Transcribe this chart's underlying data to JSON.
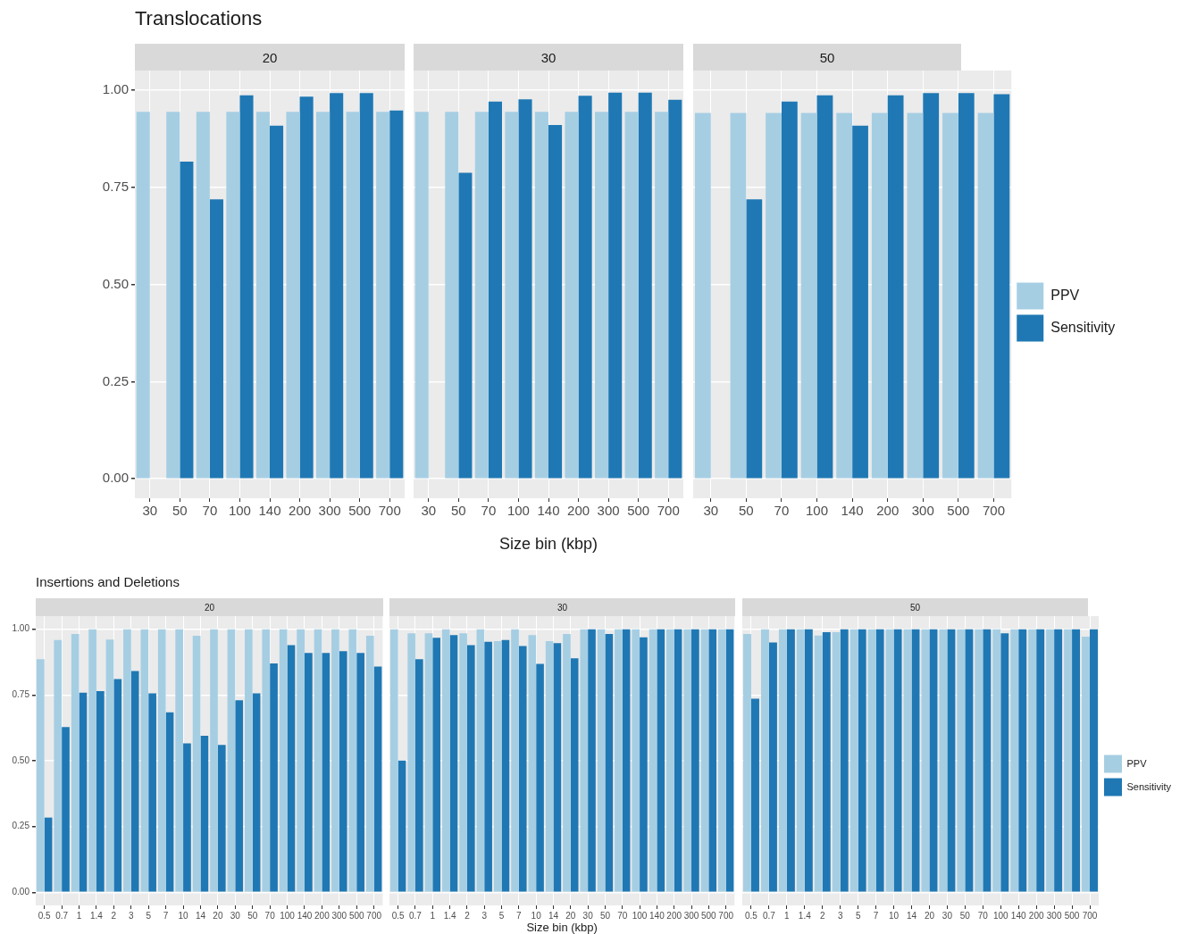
{
  "chart_data": [
    {
      "type": "bar",
      "title": "Translocations",
      "subtitle": "20",
      "categories": [
        "30",
        "50",
        "70",
        "100",
        "140",
        "200",
        "300",
        "500",
        "700"
      ],
      "series": [
        {
          "color": "#a6cee3",
          "values": [
            0.944,
            0.944,
            0.944,
            0.944,
            0.944,
            0.944,
            0.944,
            0.944,
            0.944
          ]
        },
        {
          "color": "#1f78b4",
          "values": [
            0,
            0.816,
            0.719,
            0.986,
            0.908,
            0.983,
            0.992,
            0.992,
            0.947
          ]
        }
      ],
      "ylim": [
        -0.05,
        1.05
      ],
      "yticks": [
        {
          "value": 0,
          "label": "0.00"
        },
        {
          "value": 0.25,
          "label": "0.25"
        },
        {
          "value": 0.5,
          "label": "0.50"
        },
        {
          "value": 0.75,
          "label": "0.75"
        },
        {
          "value": 1,
          "label": "1.00"
        }
      ],
      "grid": true
    },
    {
      "type": "bar",
      "subtitle": "30",
      "xlabel": "Size bin (kbp)",
      "categories": [
        "30",
        "50",
        "70",
        "100",
        "140",
        "200",
        "300",
        "500",
        "700"
      ],
      "series": [
        {
          "color": "#a6cee3",
          "values": [
            0.944,
            0.944,
            0.944,
            0.944,
            0.944,
            0.944,
            0.944,
            0.944,
            0.944
          ]
        },
        {
          "color": "#1f78b4",
          "values": [
            0,
            0.787,
            0.97,
            0.976,
            0.91,
            0.985,
            0.993,
            0.993,
            0.975
          ]
        }
      ],
      "ylim": [
        -0.05,
        1.05
      ],
      "yticks": [
        0,
        0.25,
        0.5,
        0.75,
        1
      ],
      "grid": true,
      "tick_labels": "x"
    },
    {
      "type": "bar",
      "subtitle": "50",
      "categories": [
        "30",
        "50",
        "70",
        "100",
        "140",
        "200",
        "300",
        "500",
        "700"
      ],
      "series": [
        {
          "name": "PPV",
          "color": "#a6cee3",
          "values": [
            0.941,
            0.941,
            0.941,
            0.941,
            0.941,
            0.941,
            0.941,
            0.941,
            0.941
          ]
        },
        {
          "name": "Sensitivity",
          "color": "#1f78b4",
          "values": [
            0,
            0.719,
            0.97,
            0.986,
            0.908,
            0.986,
            0.992,
            0.992,
            0.989
          ]
        }
      ],
      "ylim": [
        -0.05,
        1.05
      ],
      "yticks": [
        0,
        0.25,
        0.5,
        0.75,
        1
      ],
      "grid": true,
      "tick_labels": "x",
      "legend": "right"
    },
    {
      "type": "bar",
      "title": "Insertions and Deletions",
      "subtitle": "20",
      "categories": [
        "0.5",
        "0.7",
        "1",
        "1.4",
        "2",
        "3",
        "5",
        "7",
        "10",
        "14",
        "20",
        "30",
        "50",
        "70",
        "100",
        "140",
        "200",
        "300",
        "500",
        "700"
      ],
      "series": [
        {
          "color": "#a6cee3",
          "values": [
            0.886,
            0.959,
            0.982,
            1,
            0.961,
            1,
            1,
            1,
            1,
            0.975,
            1,
            1,
            1,
            1,
            1,
            1,
            1,
            1,
            1,
            0.975
          ]
        },
        {
          "color": "#1f78b4",
          "values": [
            0.284,
            0.628,
            0.759,
            0.765,
            0.811,
            0.841,
            0.756,
            0.684,
            0.566,
            0.595,
            0.56,
            0.73,
            0.756,
            0.87,
            0.94,
            0.91,
            0.91,
            0.917,
            0.91,
            0.858
          ]
        }
      ],
      "ylim": [
        -0.05,
        1.05
      ],
      "yticks": [
        {
          "value": 0,
          "label": "0.00"
        },
        {
          "value": 0.25,
          "label": "0.25"
        },
        {
          "value": 0.5,
          "label": "0.50"
        },
        {
          "value": 0.75,
          "label": "0.75"
        },
        {
          "value": 1,
          "label": "1.00"
        }
      ],
      "grid": true
    },
    {
      "type": "bar",
      "subtitle": "30",
      "xlabel": "Size bin (kbp)",
      "categories": [
        "0.5",
        "0.7",
        "1",
        "1.4",
        "2",
        "3",
        "5",
        "7",
        "10",
        "14",
        "20",
        "30",
        "50",
        "70",
        "100",
        "140",
        "200",
        "300",
        "500",
        "700"
      ],
      "series": [
        {
          "color": "#a6cee3",
          "values": [
            1,
            0.985,
            0.985,
            1,
            0.985,
            1,
            0.955,
            1,
            0.978,
            0.955,
            0.982,
            1,
            1,
            1,
            1,
            1,
            1,
            1,
            1,
            1
          ]
        },
        {
          "color": "#1f78b4",
          "values": [
            0.501,
            0.886,
            0.968,
            0.978,
            0.94,
            0.952,
            0.959,
            0.936,
            0.868,
            0.947,
            0.89,
            1,
            0.982,
            1,
            0.969,
            1,
            1,
            1,
            1,
            1
          ]
        }
      ],
      "ylim": [
        -0.05,
        1.05
      ],
      "yticks": [
        0,
        0.25,
        0.5,
        0.75,
        1
      ],
      "grid": true,
      "tick_labels": "x"
    },
    {
      "type": "bar",
      "subtitle": "50",
      "categories": [
        "0.5",
        "0.7",
        "1",
        "1.4",
        "2",
        "3",
        "5",
        "7",
        "10",
        "14",
        "20",
        "30",
        "50",
        "70",
        "100",
        "140",
        "200",
        "300",
        "500",
        "700"
      ],
      "series": [
        {
          "name": "PPV",
          "color": "#a6cee3",
          "values": [
            0.982,
            1,
            1,
            1,
            0.976,
            0.989,
            1,
            1,
            1,
            1,
            1,
            1,
            1,
            1,
            1,
            1,
            1,
            1,
            1,
            0.972
          ]
        },
        {
          "name": "Sensitivity",
          "color": "#1f78b4",
          "values": [
            0.736,
            0.95,
            1,
            1,
            0.989,
            1,
            1,
            1,
            1,
            1,
            1,
            1,
            1,
            1,
            0.985,
            1,
            1,
            1,
            1,
            1
          ]
        }
      ],
      "ylim": [
        -0.05,
        1.05
      ],
      "yticks": [
        0,
        0.25,
        0.5,
        0.75,
        1
      ],
      "grid": true,
      "tick_labels": "x",
      "legend": "right"
    }
  ]
}
